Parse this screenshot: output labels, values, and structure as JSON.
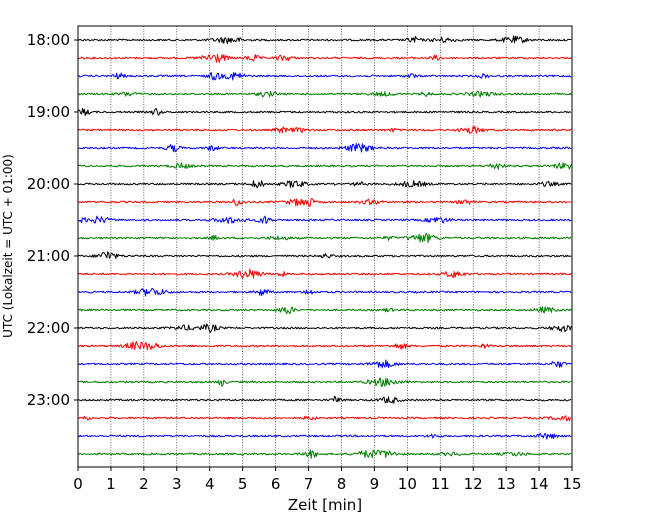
{
  "chart_data": {
    "type": "line",
    "title": "",
    "xlabel": "Zeit  [min]",
    "ylabel": "UTC (Lokalzeit = UTC + 01:00)",
    "xlim": [
      0,
      15
    ],
    "x_ticks": [
      "0",
      "1",
      "2",
      "3",
      "4",
      "5",
      "6",
      "7",
      "8",
      "9",
      "10",
      "11",
      "12",
      "13",
      "14",
      "15"
    ],
    "y_ticks": [
      "18:00",
      "19:00",
      "20:00",
      "21:00",
      "22:00",
      "23:00"
    ],
    "grid": {
      "x": true,
      "y": false
    },
    "trace_interval_minutes": 15,
    "start_time": "18:00",
    "trace_colors": [
      "#000000",
      "#ff0000",
      "#0000ff",
      "#008000"
    ],
    "trace_count": 24
  }
}
